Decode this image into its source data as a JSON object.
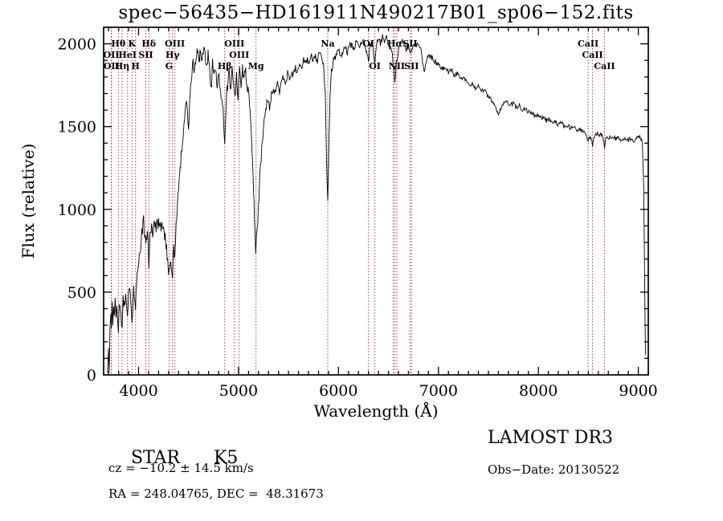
{
  "chart_data": {
    "type": "line",
    "title": "spec−56435−HD161911N490217B01_sp06−152.fits",
    "xlabel": "Wavelength (Å)",
    "ylabel": "Flux (relative)",
    "xlim": [
      3650,
      9100
    ],
    "ylim": [
      0,
      2100
    ],
    "x_ticks": [
      4000,
      5000,
      6000,
      7000,
      8000,
      9000
    ],
    "y_ticks": [
      0,
      500,
      1000,
      1500,
      2000
    ],
    "line_color": "#000000",
    "marker_color": "#a33a3a",
    "legend": "none",
    "grid": false,
    "series": [
      {
        "name": "flux",
        "points": [
          [
            3690,
            20
          ],
          [
            3698,
            130
          ],
          [
            3706,
            60
          ],
          [
            3714,
            300
          ],
          [
            3722,
            360
          ],
          [
            3727,
            250
          ],
          [
            3735,
            400
          ],
          [
            3742,
            310
          ],
          [
            3750,
            430
          ],
          [
            3758,
            360
          ],
          [
            3766,
            450
          ],
          [
            3774,
            380
          ],
          [
            3782,
            440
          ],
          [
            3790,
            360
          ],
          [
            3798,
            250
          ],
          [
            3806,
            390
          ],
          [
            3814,
            440
          ],
          [
            3822,
            380
          ],
          [
            3835,
            300
          ],
          [
            3845,
            450
          ],
          [
            3855,
            400
          ],
          [
            3865,
            470
          ],
          [
            3875,
            420
          ],
          [
            3889,
            340
          ],
          [
            3900,
            470
          ],
          [
            3910,
            500
          ],
          [
            3920,
            450
          ],
          [
            3934,
            330
          ],
          [
            3944,
            470
          ],
          [
            3955,
            520
          ],
          [
            3969,
            390
          ],
          [
            3980,
            540
          ],
          [
            3990,
            600
          ],
          [
            4000,
            660
          ],
          [
            4012,
            740
          ],
          [
            4025,
            820
          ],
          [
            4038,
            880
          ],
          [
            4050,
            940
          ],
          [
            4062,
            840
          ],
          [
            4072,
            760
          ],
          [
            4088,
            880
          ],
          [
            4102,
            690
          ],
          [
            4115,
            840
          ],
          [
            4130,
            900
          ],
          [
            4145,
            860
          ],
          [
            4160,
            930
          ],
          [
            4175,
            880
          ],
          [
            4190,
            940
          ],
          [
            4205,
            890
          ],
          [
            4220,
            930
          ],
          [
            4235,
            870
          ],
          [
            4250,
            900
          ],
          [
            4265,
            820
          ],
          [
            4280,
            760
          ],
          [
            4295,
            660
          ],
          [
            4304,
            620
          ],
          [
            4315,
            700
          ],
          [
            4327,
            660
          ],
          [
            4340,
            620
          ],
          [
            4352,
            760
          ],
          [
            4363,
            720
          ],
          [
            4375,
            900
          ],
          [
            4390,
            1020
          ],
          [
            4405,
            1150
          ],
          [
            4420,
            1280
          ],
          [
            4440,
            1420
          ],
          [
            4460,
            1540
          ],
          [
            4480,
            1650
          ],
          [
            4500,
            1480
          ],
          [
            4515,
            1700
          ],
          [
            4530,
            1800
          ],
          [
            4545,
            1880
          ],
          [
            4560,
            1820
          ],
          [
            4575,
            1920
          ],
          [
            4590,
            1980
          ],
          [
            4605,
            1900
          ],
          [
            4620,
            1960
          ],
          [
            4635,
            1880
          ],
          [
            4650,
            1990
          ],
          [
            4665,
            1920
          ],
          [
            4680,
            1850
          ],
          [
            4695,
            1940
          ],
          [
            4710,
            1860
          ],
          [
            4725,
            1720
          ],
          [
            4740,
            1880
          ],
          [
            4755,
            1800
          ],
          [
            4770,
            1850
          ],
          [
            4785,
            1700
          ],
          [
            4800,
            1820
          ],
          [
            4815,
            1740
          ],
          [
            4830,
            1680
          ],
          [
            4845,
            1600
          ],
          [
            4861,
            1380
          ],
          [
            4875,
            1650
          ],
          [
            4890,
            1750
          ],
          [
            4905,
            1820
          ],
          [
            4920,
            1720
          ],
          [
            4935,
            1850
          ],
          [
            4950,
            1780
          ],
          [
            4965,
            1700
          ],
          [
            4980,
            1800
          ],
          [
            4995,
            1690
          ],
          [
            5010,
            1830
          ],
          [
            5025,
            1760
          ],
          [
            5040,
            1850
          ],
          [
            5055,
            1780
          ],
          [
            5070,
            1840
          ],
          [
            5085,
            1760
          ],
          [
            5100,
            1700
          ],
          [
            5115,
            1620
          ],
          [
            5130,
            1450
          ],
          [
            5145,
            1200
          ],
          [
            5160,
            950
          ],
          [
            5172,
            760
          ],
          [
            5185,
            850
          ],
          [
            5198,
            1000
          ],
          [
            5212,
            1180
          ],
          [
            5226,
            1320
          ],
          [
            5240,
            1430
          ],
          [
            5255,
            1520
          ],
          [
            5270,
            1600
          ],
          [
            5290,
            1660
          ],
          [
            5310,
            1610
          ],
          [
            5330,
            1690
          ],
          [
            5350,
            1730
          ],
          [
            5370,
            1690
          ],
          [
            5390,
            1750
          ],
          [
            5410,
            1710
          ],
          [
            5430,
            1770
          ],
          [
            5450,
            1800
          ],
          [
            5470,
            1770
          ],
          [
            5490,
            1820
          ],
          [
            5510,
            1790
          ],
          [
            5530,
            1840
          ],
          [
            5550,
            1810
          ],
          [
            5570,
            1860
          ],
          [
            5590,
            1830
          ],
          [
            5610,
            1880
          ],
          [
            5630,
            1850
          ],
          [
            5650,
            1900
          ],
          [
            5670,
            1870
          ],
          [
            5690,
            1910
          ],
          [
            5710,
            1880
          ],
          [
            5730,
            1920
          ],
          [
            5750,
            1890
          ],
          [
            5770,
            1930
          ],
          [
            5790,
            1900
          ],
          [
            5810,
            1940
          ],
          [
            5830,
            1910
          ],
          [
            5850,
            1880
          ],
          [
            5868,
            1700
          ],
          [
            5880,
            1300
          ],
          [
            5893,
            1030
          ],
          [
            5904,
            1400
          ],
          [
            5916,
            1700
          ],
          [
            5930,
            1840
          ],
          [
            5950,
            1900
          ],
          [
            5975,
            1940
          ],
          [
            6000,
            1960
          ],
          [
            6030,
            1930
          ],
          [
            6060,
            1980
          ],
          [
            6090,
            1950
          ],
          [
            6120,
            2000
          ],
          [
            6150,
            1970
          ],
          [
            6180,
            2010
          ],
          [
            6210,
            1980
          ],
          [
            6240,
            2020
          ],
          [
            6270,
            1990
          ],
          [
            6300,
            1890
          ],
          [
            6315,
            1990
          ],
          [
            6330,
            2010
          ],
          [
            6345,
            1980
          ],
          [
            6364,
            1890
          ],
          [
            6380,
            2000
          ],
          [
            6400,
            2030
          ],
          [
            6420,
            2000
          ],
          [
            6440,
            2040
          ],
          [
            6460,
            2010
          ],
          [
            6480,
            2040
          ],
          [
            6500,
            2000
          ],
          [
            6520,
            1970
          ],
          [
            6540,
            1930
          ],
          [
            6563,
            1750
          ],
          [
            6580,
            1880
          ],
          [
            6600,
            1960
          ],
          [
            6620,
            2000
          ],
          [
            6640,
            2030
          ],
          [
            6660,
            2000
          ],
          [
            6680,
            1970
          ],
          [
            6700,
            1990
          ],
          [
            6717,
            1930
          ],
          [
            6735,
            1980
          ],
          [
            6755,
            2010
          ],
          [
            6775,
            1990
          ],
          [
            6800,
            1980
          ],
          [
            6830,
            1950
          ],
          [
            6860,
            1820
          ],
          [
            6890,
            1920
          ],
          [
            6920,
            1930
          ],
          [
            6950,
            1900
          ],
          [
            6980,
            1890
          ],
          [
            7010,
            1870
          ],
          [
            7040,
            1850
          ],
          [
            7070,
            1860
          ],
          [
            7100,
            1830
          ],
          [
            7130,
            1845
          ],
          [
            7160,
            1810
          ],
          [
            7190,
            1820
          ],
          [
            7220,
            1790
          ],
          [
            7250,
            1800
          ],
          [
            7280,
            1770
          ],
          [
            7310,
            1750
          ],
          [
            7340,
            1760
          ],
          [
            7370,
            1730
          ],
          [
            7400,
            1740
          ],
          [
            7430,
            1710
          ],
          [
            7460,
            1720
          ],
          [
            7490,
            1690
          ],
          [
            7520,
            1670
          ],
          [
            7550,
            1640
          ],
          [
            7580,
            1600
          ],
          [
            7605,
            1580
          ],
          [
            7630,
            1620
          ],
          [
            7660,
            1640
          ],
          [
            7690,
            1650
          ],
          [
            7720,
            1630
          ],
          [
            7750,
            1640
          ],
          [
            7780,
            1615
          ],
          [
            7810,
            1625
          ],
          [
            7840,
            1600
          ],
          [
            7870,
            1610
          ],
          [
            7900,
            1585
          ],
          [
            7930,
            1590
          ],
          [
            7960,
            1565
          ],
          [
            7990,
            1570
          ],
          [
            8020,
            1550
          ],
          [
            8050,
            1560
          ],
          [
            8080,
            1535
          ],
          [
            8110,
            1545
          ],
          [
            8140,
            1520
          ],
          [
            8170,
            1530
          ],
          [
            8200,
            1510
          ],
          [
            8230,
            1520
          ],
          [
            8260,
            1500
          ],
          [
            8290,
            1510
          ],
          [
            8320,
            1490
          ],
          [
            8350,
            1500
          ],
          [
            8380,
            1480
          ],
          [
            8410,
            1490
          ],
          [
            8440,
            1470
          ],
          [
            8470,
            1455
          ],
          [
            8498,
            1400
          ],
          [
            8515,
            1450
          ],
          [
            8542,
            1390
          ],
          [
            8560,
            1450
          ],
          [
            8585,
            1460
          ],
          [
            8610,
            1445
          ],
          [
            8635,
            1450
          ],
          [
            8662,
            1380
          ],
          [
            8680,
            1440
          ],
          [
            8710,
            1435
          ],
          [
            8740,
            1445
          ],
          [
            8770,
            1425
          ],
          [
            8800,
            1435
          ],
          [
            8830,
            1420
          ],
          [
            8860,
            1430
          ],
          [
            8890,
            1415
          ],
          [
            8920,
            1425
          ],
          [
            8950,
            1410
          ],
          [
            8975,
            1420
          ],
          [
            9000,
            1445
          ],
          [
            9020,
            1430
          ],
          [
            9040,
            1415
          ],
          [
            9055,
            1100
          ],
          [
            9065,
            500
          ],
          [
            9072,
            120
          ]
        ]
      }
    ],
    "spectral_lines": [
      {
        "wavelength": 3727,
        "label": "OII",
        "row": 2
      },
      {
        "wavelength": 3729,
        "label": "OII",
        "row": 3
      },
      {
        "wavelength": 3798,
        "label": "Hθ",
        "row": 1
      },
      {
        "wavelength": 3835,
        "label": "Hη",
        "row": 3
      },
      {
        "wavelength": 3889,
        "label": "HeI",
        "row": 2
      },
      {
        "wavelength": 3934,
        "label": "K",
        "row": 1
      },
      {
        "wavelength": 3969,
        "label": "H",
        "row": 3
      },
      {
        "wavelength": 4072,
        "label": "SII",
        "row": 2
      },
      {
        "wavelength": 4102,
        "label": "Hδ",
        "row": 1
      },
      {
        "wavelength": 4304,
        "label": "G",
        "row": 3
      },
      {
        "wavelength": 4340,
        "label": "Hγ",
        "row": 2
      },
      {
        "wavelength": 4363,
        "label": "OIII",
        "row": 1
      },
      {
        "wavelength": 4861,
        "label": "Hβ",
        "row": 3
      },
      {
        "wavelength": 4959,
        "label": "OIII",
        "row": 1
      },
      {
        "wavelength": 5007,
        "label": "OIII",
        "row": 2
      },
      {
        "wavelength": 5175,
        "label": "Mg",
        "row": 3
      },
      {
        "wavelength": 5893,
        "label": "Na",
        "row": 1
      },
      {
        "wavelength": 6300,
        "label": "OI",
        "row": 1
      },
      {
        "wavelength": 6364,
        "label": "OI",
        "row": 3
      },
      {
        "wavelength": 6548,
        "label": "",
        "row": 0
      },
      {
        "wavelength": 6563,
        "label": "Hα",
        "row": 1
      },
      {
        "wavelength": 6583,
        "label": "NII",
        "row": 3
      },
      {
        "wavelength": 6717,
        "label": "SII",
        "row": 1
      },
      {
        "wavelength": 6731,
        "label": "SII",
        "row": 3
      },
      {
        "wavelength": 8498,
        "label": "CaII",
        "row": 1
      },
      {
        "wavelength": 8542,
        "label": "CaII",
        "row": 2
      },
      {
        "wavelength": 8662,
        "label": "CaII",
        "row": 3
      }
    ]
  },
  "footer": {
    "object_type": "STAR",
    "subclass": "K5",
    "survey": "LAMOST DR3",
    "cz": "cz = −10.2 ± 14.5 km/s",
    "obs_date": "Obs−Date: 20130522",
    "coords": "RA = 248.04765, DEC =  48.31673"
  }
}
